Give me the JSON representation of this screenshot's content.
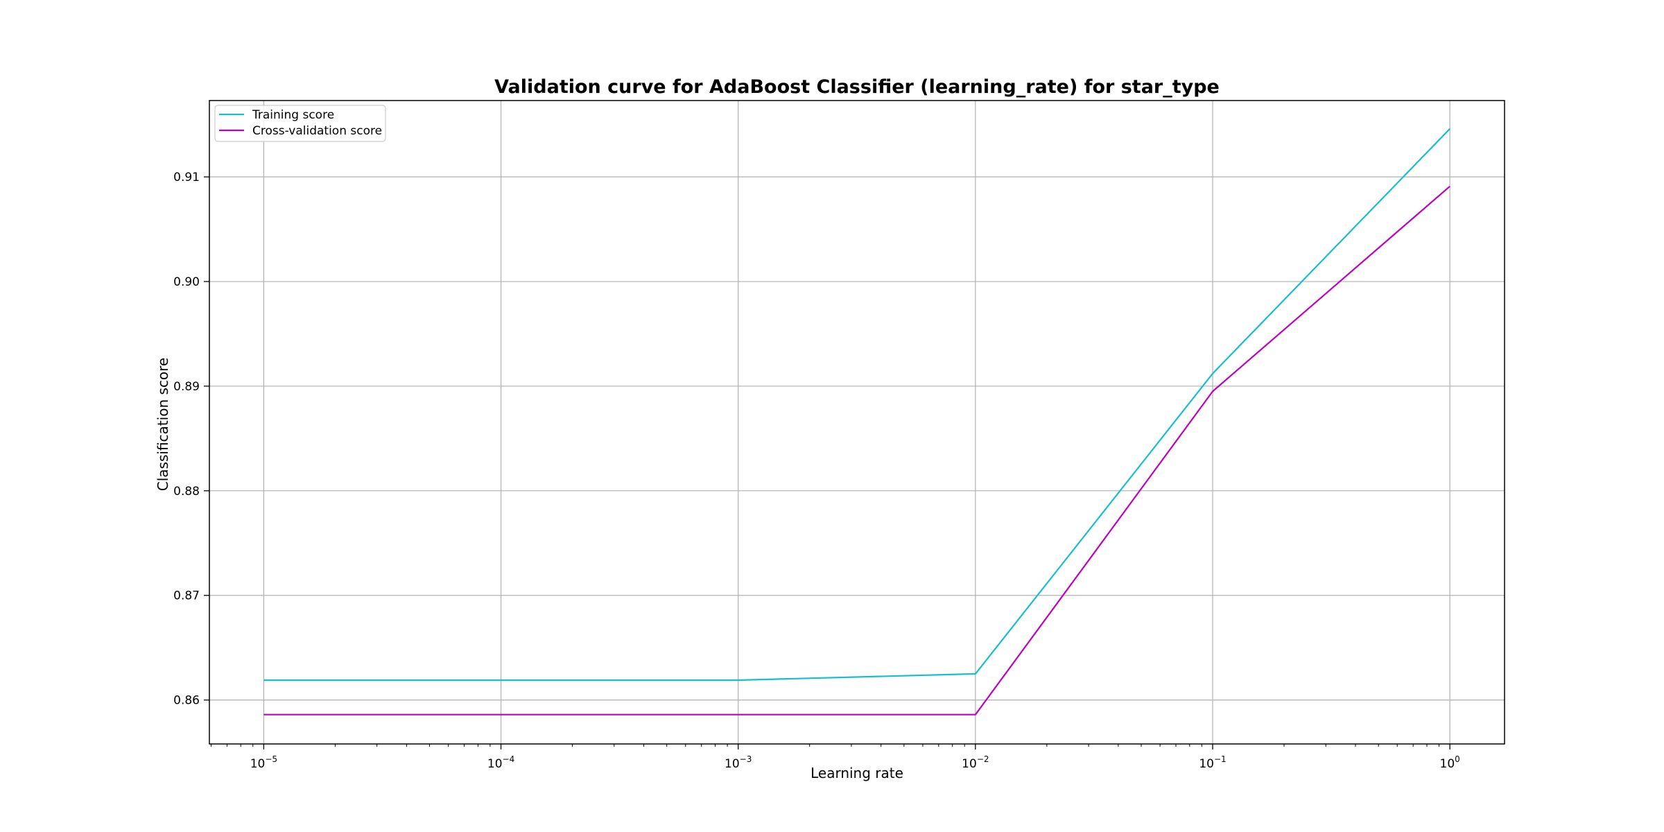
{
  "chart_data": {
    "type": "line",
    "title": "Validation curve for AdaBoost Classifier (learning_rate) for star_type",
    "xlabel": "Learning rate",
    "ylabel": "Classification score",
    "x_scale": "log",
    "x": [
      1e-05,
      0.0001,
      0.001,
      0.01,
      0.1,
      1
    ],
    "xlim": [
      5.9e-06,
      1.7
    ],
    "ylim": [
      0.8558,
      0.9173
    ],
    "x_ticks": [
      {
        "value": 1e-05,
        "base": "10",
        "exp": "−5"
      },
      {
        "value": 0.0001,
        "base": "10",
        "exp": "−4"
      },
      {
        "value": 0.001,
        "base": "10",
        "exp": "−3"
      },
      {
        "value": 0.01,
        "base": "10",
        "exp": "−2"
      },
      {
        "value": 0.1,
        "base": "10",
        "exp": "−1"
      },
      {
        "value": 1,
        "base": "10",
        "exp": "0"
      }
    ],
    "y_ticks": [
      {
        "value": 0.86,
        "label": "0.86"
      },
      {
        "value": 0.87,
        "label": "0.87"
      },
      {
        "value": 0.88,
        "label": "0.88"
      },
      {
        "value": 0.89,
        "label": "0.89"
      },
      {
        "value": 0.9,
        "label": "0.90"
      },
      {
        "value": 0.91,
        "label": "0.91"
      }
    ],
    "grid": true,
    "legend_position": "upper-left",
    "series": [
      {
        "name": "Training score",
        "color": "#17becf",
        "values": [
          0.8619,
          0.8619,
          0.8619,
          0.8625,
          0.8912,
          0.9146
        ]
      },
      {
        "name": "Cross-validation score",
        "color": "#bf00bf",
        "values": [
          0.8586,
          0.8586,
          0.8586,
          0.8586,
          0.8895,
          0.9091
        ]
      }
    ]
  }
}
